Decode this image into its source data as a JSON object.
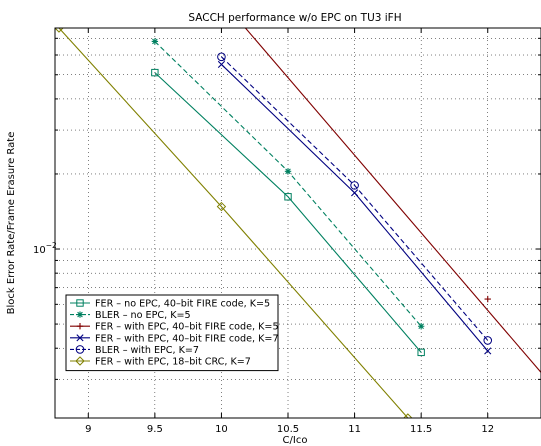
{
  "chart_data": {
    "type": "line",
    "title": "SACCH performance w/o EPC on TU3 iFH",
    "xlabel": "C/Ico",
    "ylabel": "Block Error Rate/Frame Erasure Rate",
    "xlim": [
      8.75,
      12.4
    ],
    "ylim": [
      0.0021,
      0.077
    ],
    "yscale": "log",
    "grid": true,
    "legend_position": "lower-left",
    "x_ticks": [
      {
        "value": 9,
        "label": "9"
      },
      {
        "value": 9.5,
        "label": "9.5"
      },
      {
        "value": 10,
        "label": "10"
      },
      {
        "value": 10.5,
        "label": "10.5"
      },
      {
        "value": 11,
        "label": "11"
      },
      {
        "value": 11.5,
        "label": "11.5"
      },
      {
        "value": 12,
        "label": "12"
      }
    ],
    "y_ticks": [
      {
        "value": 0.01,
        "base": "10",
        "exp": "−2"
      }
    ],
    "series": [
      {
        "name": "FER – no EPC, 40–bit FIRE code, K=5",
        "color": "#008060",
        "dash": "solid",
        "marker": "square",
        "x": [
          9.5,
          10.5,
          11.5
        ],
        "y": [
          0.051,
          0.0162,
          0.00385
        ]
      },
      {
        "name": "BLER – no EPC, K=5",
        "color": "#008060",
        "dash": "dashed",
        "marker": "star",
        "x": [
          9.5,
          10.5,
          11.5
        ],
        "y": [
          0.068,
          0.0205,
          0.0049
        ]
      },
      {
        "name": "FER – with EPC, 40–bit FIRE code, K=5",
        "color": "#800000",
        "dash": "solid",
        "marker": "plus",
        "x": [
          10.4,
          12.4
        ],
        "y": [
          0.077,
          0.0032
        ],
        "line_x": [
          10.18,
          12.4
        ],
        "line_y": [
          0.077,
          0.0032
        ],
        "marker_x": [
          12
        ],
        "marker_y": [
          0.0063
        ]
      },
      {
        "name": "FER – with EPC, 40–bit FIRE code, K=7",
        "color": "#000080",
        "dash": "solid",
        "marker": "x",
        "x": [
          10,
          11,
          12
        ],
        "y": [
          0.055,
          0.0168,
          0.0039
        ]
      },
      {
        "name": "BLER – with EPC, K=7",
        "color": "#000080",
        "dash": "dashed",
        "marker": "circle",
        "x": [
          10,
          11,
          12
        ],
        "y": [
          0.059,
          0.018,
          0.0043
        ]
      },
      {
        "name": "FER – with EPC, 18–bit CRC, K=7",
        "color": "#808000",
        "dash": "solid",
        "marker": "diamond",
        "x": [
          8.78,
          10,
          11.4
        ],
        "y": [
          0.077,
          0.0148,
          0.0021
        ]
      }
    ]
  }
}
